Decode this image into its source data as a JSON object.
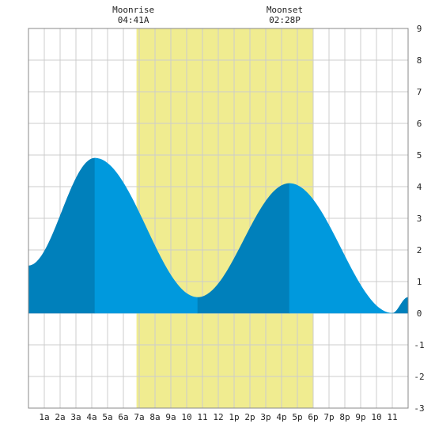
{
  "chart_data": {
    "type": "area",
    "title": "",
    "xlabel": "",
    "ylabel": "",
    "x_tick_labels": [
      "1a",
      "2a",
      "3a",
      "4a",
      "5a",
      "6a",
      "7a",
      "8a",
      "9a",
      "10",
      "11",
      "12",
      "1p",
      "2p",
      "3p",
      "4p",
      "5p",
      "6p",
      "7p",
      "8p",
      "9p",
      "10",
      "11"
    ],
    "y_ticks": [
      9,
      8,
      7,
      6,
      5,
      4,
      3,
      2,
      1,
      0,
      -1,
      -2,
      -3
    ],
    "ylim": [
      -3,
      9
    ],
    "xlim": [
      0,
      24
    ],
    "grid": true,
    "moon_events": [
      {
        "label": "Moonrise",
        "time": "04:41A"
      },
      {
        "label": "Moonset",
        "time": "02:28P"
      }
    ],
    "daylight_band": {
      "start_hour": 6.83,
      "end_hour": 18.0
    },
    "tide_extremes": [
      {
        "hour": 0.0,
        "height": 1.5
      },
      {
        "hour": 4.2,
        "height": 4.9
      },
      {
        "hour": 10.7,
        "height": 0.5
      },
      {
        "hour": 16.5,
        "height": 4.1
      },
      {
        "hour": 23.0,
        "height": 0.0
      },
      {
        "hour": 24.0,
        "height": 0.5
      }
    ],
    "colors": {
      "tide_light": "#0099dd",
      "tide_dark": "#0080bb",
      "daylight": "#f0ec90",
      "grid": "#cccccc",
      "axis_frame": "#888888"
    }
  }
}
